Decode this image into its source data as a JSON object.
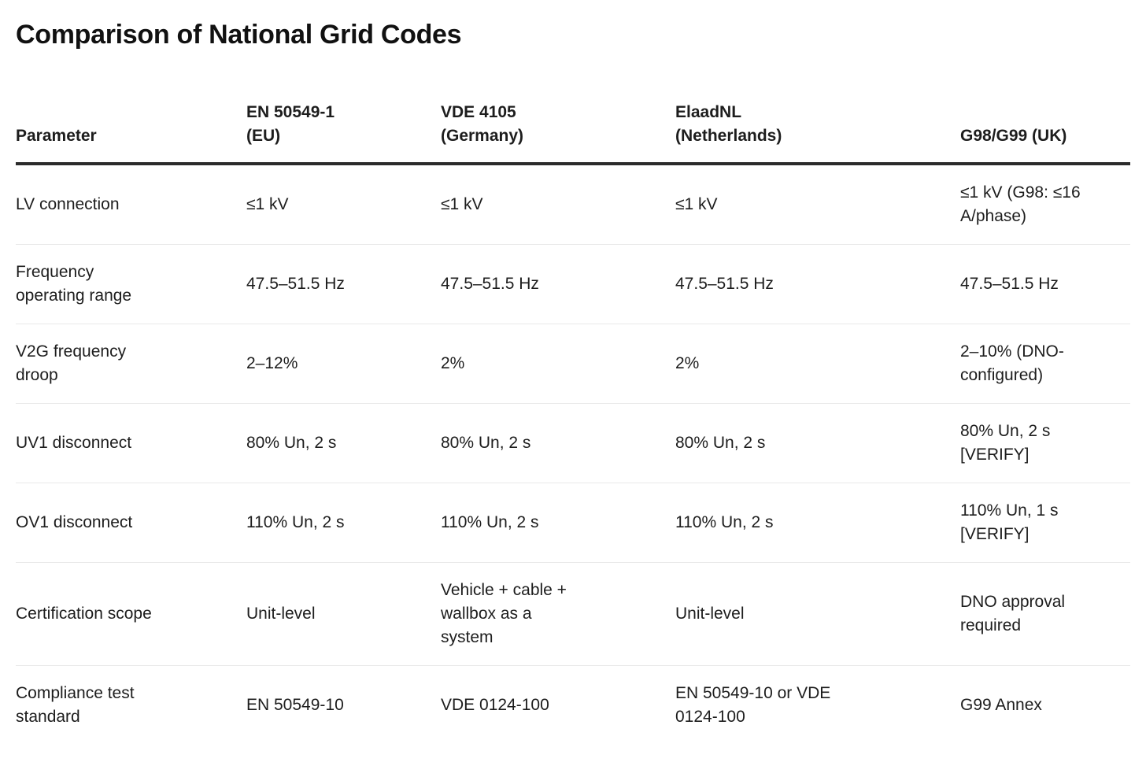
{
  "page": {
    "title": "Comparison of National Grid Codes"
  },
  "colors": {
    "background": "#ffffff",
    "text": "#1d1d1d",
    "header_rule": "#2b2b2b",
    "row_divider": "#e9e9e9"
  },
  "table": {
    "columns": [
      {
        "label": "Parameter"
      },
      {
        "label": "EN 50549-1\n(EU)"
      },
      {
        "label": "VDE 4105\n(Germany)"
      },
      {
        "label": "ElaadNL\n(Netherlands)"
      },
      {
        "label": "G98/G99 (UK)"
      }
    ],
    "rows": [
      {
        "parameter": "LV connection",
        "values": [
          "≤1 kV",
          "≤1 kV",
          "≤1 kV",
          "≤1 kV (G98: ≤16\nA/phase)"
        ]
      },
      {
        "parameter": "Frequency\noperating range",
        "values": [
          "47.5–51.5 Hz",
          "47.5–51.5 Hz",
          "47.5–51.5 Hz",
          "47.5–51.5 Hz"
        ]
      },
      {
        "parameter": "V2G frequency\ndroop",
        "values": [
          "2–12%",
          "2%",
          "2%",
          "2–10% (DNO-\nconfigured)"
        ]
      },
      {
        "parameter": "UV1 disconnect",
        "values": [
          "80% Un, 2 s",
          "80% Un, 2 s",
          "80% Un, 2 s",
          "80% Un, 2 s\n[VERIFY]"
        ]
      },
      {
        "parameter": "OV1 disconnect",
        "values": [
          "110% Un, 2 s",
          "110% Un, 2 s",
          "110% Un, 2 s",
          "110% Un, 1 s\n[VERIFY]"
        ]
      },
      {
        "parameter": "Certification scope",
        "values": [
          "Unit-level",
          "Vehicle + cable +\nwallbox as a\nsystem",
          "Unit-level",
          "DNO approval\nrequired"
        ]
      },
      {
        "parameter": "Compliance test\nstandard",
        "values": [
          "EN 50549-10",
          "VDE 0124-100",
          "EN 50549-10 or VDE\n0124-100",
          "G99 Annex"
        ]
      }
    ]
  }
}
